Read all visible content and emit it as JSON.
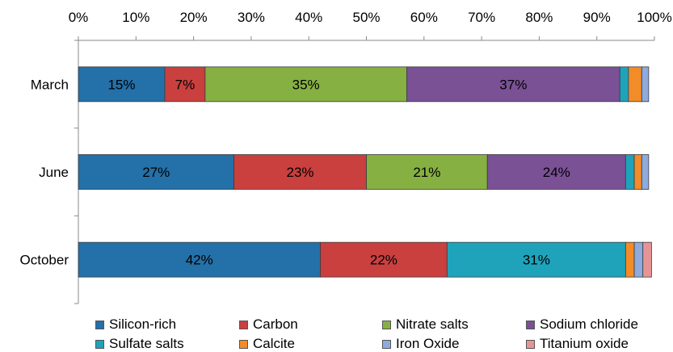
{
  "chart_data": {
    "type": "bar",
    "orientation": "horizontal",
    "stacked": true,
    "normalized": true,
    "categories": [
      "March",
      "June",
      "October"
    ],
    "x_ticks": [
      "0%",
      "10%",
      "20%",
      "30%",
      "40%",
      "50%",
      "60%",
      "70%",
      "80%",
      "90%",
      "100%"
    ],
    "xlim": [
      0,
      100
    ],
    "x_axis_position": "top",
    "legend_position": "bottom",
    "grid": false,
    "series": [
      {
        "name": "Silicon-rich",
        "color": "#2470A8",
        "values": [
          15,
          27,
          42
        ],
        "labels": [
          "15%",
          "27%",
          "42%"
        ]
      },
      {
        "name": "Carbon",
        "color": "#C9403F",
        "values": [
          7,
          23,
          22
        ],
        "labels": [
          "7%",
          "23%",
          "22%"
        ]
      },
      {
        "name": "Nitrate salts",
        "color": "#86B042",
        "values": [
          35,
          21,
          0
        ],
        "labels": [
          "35%",
          "21%",
          ""
        ]
      },
      {
        "name": "Sodium chloride",
        "color": "#7A5195",
        "values": [
          37,
          24,
          0
        ],
        "labels": [
          "37%",
          "24%",
          ""
        ]
      },
      {
        "name": "Sulfate salts",
        "color": "#1FA3BB",
        "values": [
          1.5,
          1.5,
          31
        ],
        "labels": [
          "",
          "",
          "31%"
        ]
      },
      {
        "name": "Calcite",
        "color": "#F28C28",
        "values": [
          2.3,
          1.3,
          1.5
        ],
        "labels": [
          "",
          "",
          ""
        ]
      },
      {
        "name": "Iron Oxide",
        "color": "#8FAADC",
        "values": [
          1.2,
          1.2,
          1.5
        ],
        "labels": [
          "",
          "",
          ""
        ]
      },
      {
        "name": "Titanium oxide",
        "color": "#E69596",
        "values": [
          0,
          0,
          1.5
        ],
        "labels": [
          "",
          "",
          ""
        ]
      }
    ]
  }
}
